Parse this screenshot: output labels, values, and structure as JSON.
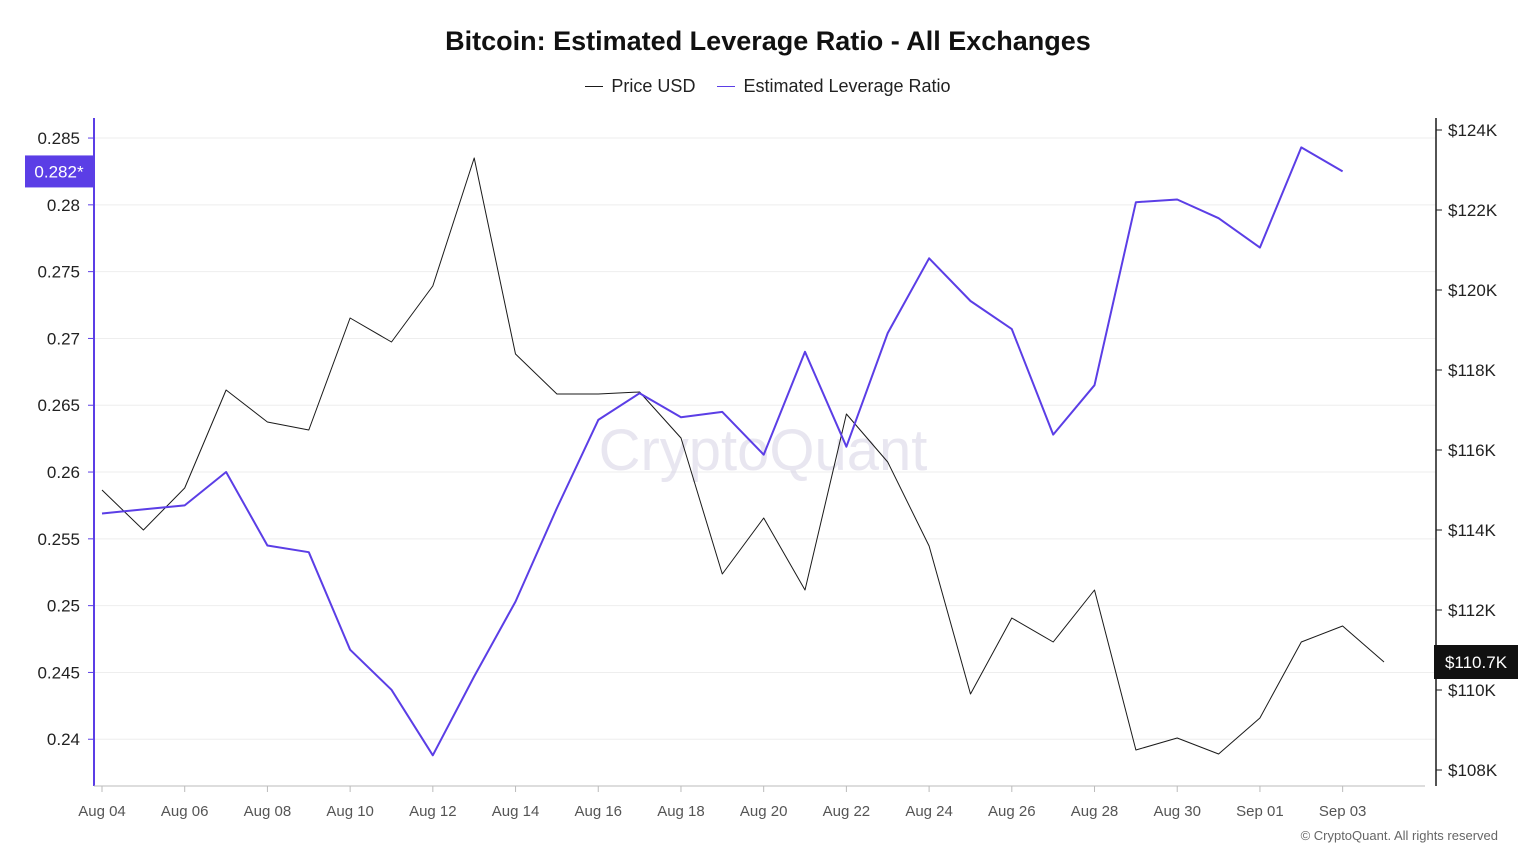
{
  "chart_data": {
    "type": "line",
    "title": "Bitcoin: Estimated Leverage Ratio - All Exchanges",
    "watermark": "CryptoQuant",
    "copyright": "© CryptoQuant. All rights reserved",
    "x": [
      "Aug 04",
      "Aug 05",
      "Aug 06",
      "Aug 07",
      "Aug 08",
      "Aug 09",
      "Aug 10",
      "Aug 11",
      "Aug 12",
      "Aug 13",
      "Aug 14",
      "Aug 15",
      "Aug 16",
      "Aug 17",
      "Aug 18",
      "Aug 19",
      "Aug 20",
      "Aug 21",
      "Aug 22",
      "Aug 23",
      "Aug 24",
      "Aug 25",
      "Aug 26",
      "Aug 27",
      "Aug 28",
      "Aug 29",
      "Aug 30",
      "Aug 31",
      "Sep 01",
      "Sep 02",
      "Sep 03",
      "Sep 04"
    ],
    "x_tick_labels": [
      "Aug 04",
      "Aug 06",
      "Aug 08",
      "Aug 10",
      "Aug 12",
      "Aug 14",
      "Aug 16",
      "Aug 18",
      "Aug 20",
      "Aug 22",
      "Aug 24",
      "Aug 26",
      "Aug 28",
      "Aug 30",
      "Sep 01",
      "Sep 03"
    ],
    "left_axis": {
      "ylim": [
        0.2365,
        0.2865
      ],
      "tick_values": [
        0.24,
        0.245,
        0.25,
        0.255,
        0.26,
        0.265,
        0.27,
        0.275,
        0.28,
        0.285
      ],
      "tick_labels": [
        "0.24",
        "0.245",
        "0.25",
        "0.255",
        "0.26",
        "0.265",
        "0.27",
        "0.275",
        "0.28",
        "0.285"
      ],
      "current_value": 0.2825,
      "current_label": "0.282*"
    },
    "right_axis": {
      "ylim": [
        107600,
        124300
      ],
      "tick_values": [
        108000,
        110000,
        112000,
        114000,
        116000,
        118000,
        120000,
        122000,
        124000
      ],
      "tick_labels": [
        "$108K",
        "$110K",
        "$112K",
        "$114K",
        "$116K",
        "$118K",
        "$120K",
        "$122K",
        "$124K"
      ],
      "current_value": 110700,
      "current_label": "$110.7K"
    },
    "grid": "horizontal",
    "legend_position": "top-center",
    "series": [
      {
        "name": "Price USD",
        "axis": "right",
        "color": "#1a1a1a",
        "values": [
          115000,
          114000,
          115050,
          117500,
          116700,
          116500,
          119300,
          118700,
          120100,
          123300,
          118400,
          117400,
          117400,
          117450,
          116300,
          112900,
          114300,
          112500,
          116900,
          115700,
          113600,
          109900,
          111800,
          111200,
          112500,
          108500,
          108800,
          108400,
          109300,
          111200,
          111600,
          110700
        ]
      },
      {
        "name": "Estimated Leverage Ratio",
        "axis": "left",
        "color": "#5b3ee6",
        "values": [
          0.2569,
          0.2572,
          0.2575,
          0.26,
          0.2545,
          0.254,
          0.2467,
          0.2437,
          0.2388,
          0.2447,
          0.2503,
          0.2573,
          0.2639,
          0.2659,
          0.2641,
          0.2645,
          0.2613,
          0.269,
          0.2619,
          0.2704,
          0.276,
          0.2728,
          0.2707,
          0.2628,
          0.2665,
          0.2802,
          0.2804,
          0.279,
          0.2768,
          0.2843,
          0.2825,
          null
        ]
      }
    ]
  }
}
